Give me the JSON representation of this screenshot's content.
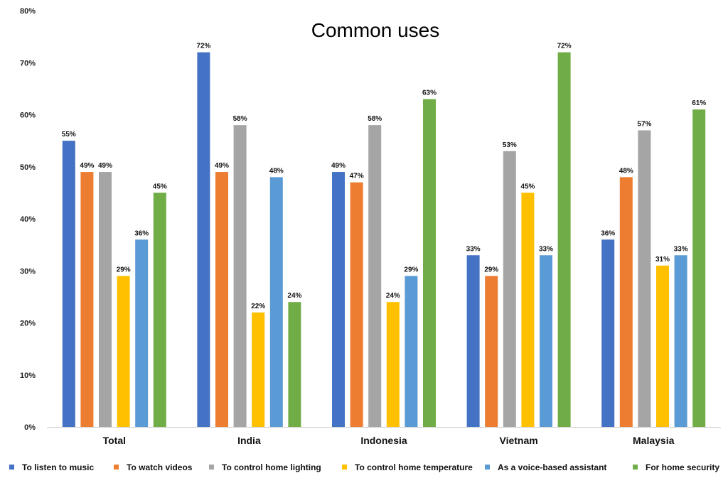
{
  "chart_data": {
    "type": "bar",
    "title": "Common uses",
    "xlabel": "",
    "ylabel": "",
    "ylim": [
      0,
      80
    ],
    "yticks": [
      "0%",
      "10%",
      "20%",
      "30%",
      "40%",
      "50%",
      "60%",
      "70%",
      "80%"
    ],
    "grid": false,
    "legend_position": "bottom",
    "categories": [
      "Total",
      "India",
      "Indonesia",
      "Vietnam",
      "Malaysia"
    ],
    "series": [
      {
        "name": "To listen to music",
        "color": "#4472c4",
        "values": [
          55,
          72,
          49,
          33,
          36
        ],
        "labels": [
          "55%",
          "72%",
          "49%",
          "33%",
          "36%"
        ]
      },
      {
        "name": "To watch videos",
        "color": "#ed7d31",
        "values": [
          49,
          49,
          47,
          29,
          48
        ],
        "labels": [
          "49%",
          "49%",
          "47%",
          "29%",
          "48%"
        ]
      },
      {
        "name": "To control home lighting",
        "color": "#a5a5a5",
        "values": [
          49,
          58,
          58,
          53,
          57
        ],
        "labels": [
          "49%",
          "58%",
          "58%",
          "53%",
          "57%"
        ]
      },
      {
        "name": "To control home temperature",
        "color": "#ffc000",
        "values": [
          29,
          22,
          24,
          45,
          31
        ],
        "labels": [
          "29%",
          "22%",
          "24%",
          "45%",
          "31%"
        ]
      },
      {
        "name": "As a voice-based assistant",
        "color": "#5b9bd5",
        "values": [
          36,
          48,
          29,
          33,
          33
        ],
        "labels": [
          "36%",
          "48%",
          "29%",
          "33%",
          "33%"
        ]
      },
      {
        "name": "For home security",
        "color": "#70ad47",
        "values": [
          45,
          24,
          63,
          72,
          61
        ],
        "labels": [
          "45%",
          "24%",
          "63%",
          "72%",
          "61%"
        ]
      }
    ]
  }
}
